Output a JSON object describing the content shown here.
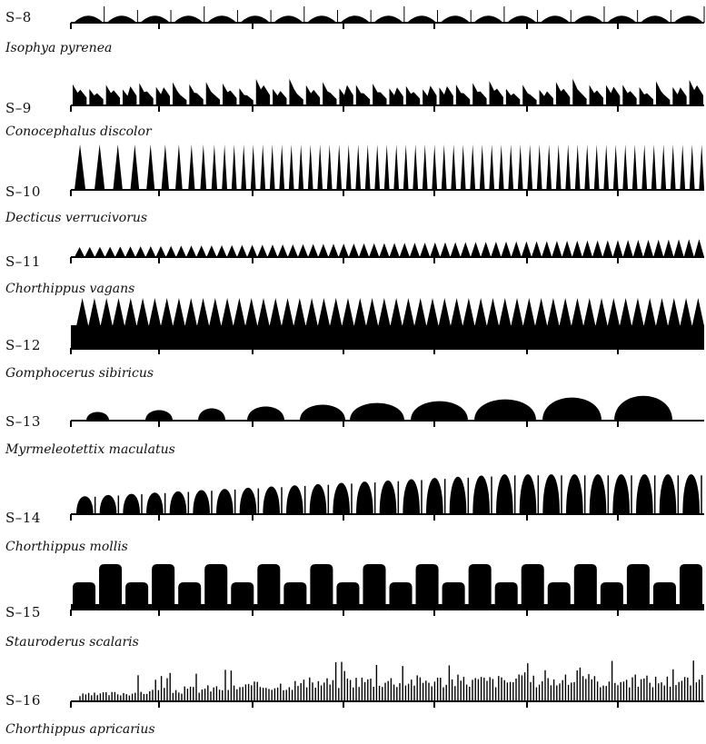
{
  "figure": {
    "rows": [
      {
        "code": "S–8",
        "species": "Isophya pyrenea",
        "pattern": "humps-flat-ticks"
      },
      {
        "code": "S–9",
        "species": "Conocephalus discolor",
        "pattern": "ragged-pulses"
      },
      {
        "code": "S–10",
        "species": "Decticus verrucivorus",
        "pattern": "accelerating-spikes"
      },
      {
        "code": "S–11",
        "species": "Chorthippus vagans",
        "pattern": "small-triangles"
      },
      {
        "code": "S–12",
        "species": "Gomphocerus sibiricus",
        "pattern": "thick-band-triangles"
      },
      {
        "code": "S–13",
        "species": "Myrmeleotettix maculatus",
        "pattern": "growing-domes"
      },
      {
        "code": "S–14",
        "species": "Chorthippus mollis",
        "pattern": "arches-with-ticks"
      },
      {
        "code": "S–15",
        "species": "Stauroderus scalaris",
        "pattern": "blocks-alternating"
      },
      {
        "code": "S–16",
        "species": "Chorthippus apricarius",
        "pattern": "dense-spikes"
      }
    ]
  }
}
